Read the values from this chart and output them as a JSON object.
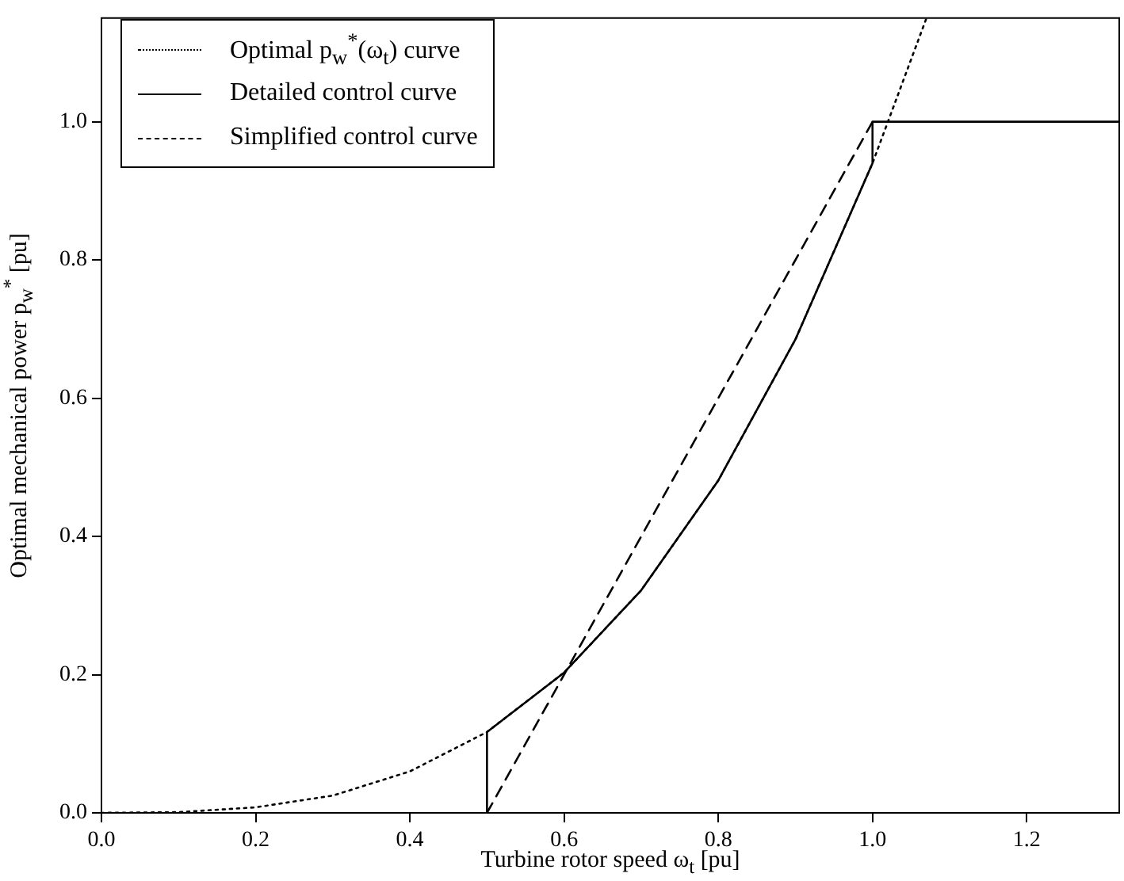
{
  "chart_data": {
    "type": "line",
    "xlabel": "Turbine rotor speed ω$_{t}$  [pu]",
    "ylabel": "Optimal mechanical power p$_{w}$$^{*}$  [pu]",
    "xlim": [
      0,
      1.32
    ],
    "ylim": [
      0,
      1.15
    ],
    "xticks": [
      {
        "value": 0,
        "label": "0.0"
      },
      0.2,
      0.4,
      0.6,
      0.8,
      {
        "value": 1,
        "label": "1.0"
      },
      1.2
    ],
    "yticks": [
      {
        "value": 0,
        "label": "0.0"
      },
      0.2,
      0.4,
      0.6,
      0.8,
      {
        "value": 1,
        "label": "1.0"
      }
    ],
    "grid": false,
    "legend": "top left",
    "marker": "none",
    "series": [
      {
        "name": "Optimal p$_{w}$$^{*}$(ω$_{t}$)  curve",
        "color": "#000000",
        "line_style": "dotted",
        "x": [
          0,
          0.1,
          0.2,
          0.3,
          0.4,
          0.5,
          0.6,
          0.7,
          0.8,
          0.9,
          1.0,
          1.07
        ],
        "values": [
          0,
          0.001,
          0.008,
          0.025,
          0.06,
          0.117,
          0.203,
          0.322,
          0.481,
          0.685,
          0.94,
          1.15
        ]
      },
      {
        "name": "Detailed control curve",
        "color": "#000000",
        "line_style": "solid",
        "x": [
          0.5,
          0.5,
          0.6,
          0.7,
          0.8,
          0.9,
          1.0,
          1.0,
          1.32
        ],
        "values": [
          0,
          0.117,
          0.203,
          0.322,
          0.481,
          0.685,
          0.94,
          1.0,
          1.0
        ]
      },
      {
        "name": "Simplified control curve",
        "color": "#000000",
        "line_style": "dashed",
        "x": [
          0.5,
          1.0
        ],
        "values": [
          0,
          1.0
        ]
      }
    ]
  }
}
